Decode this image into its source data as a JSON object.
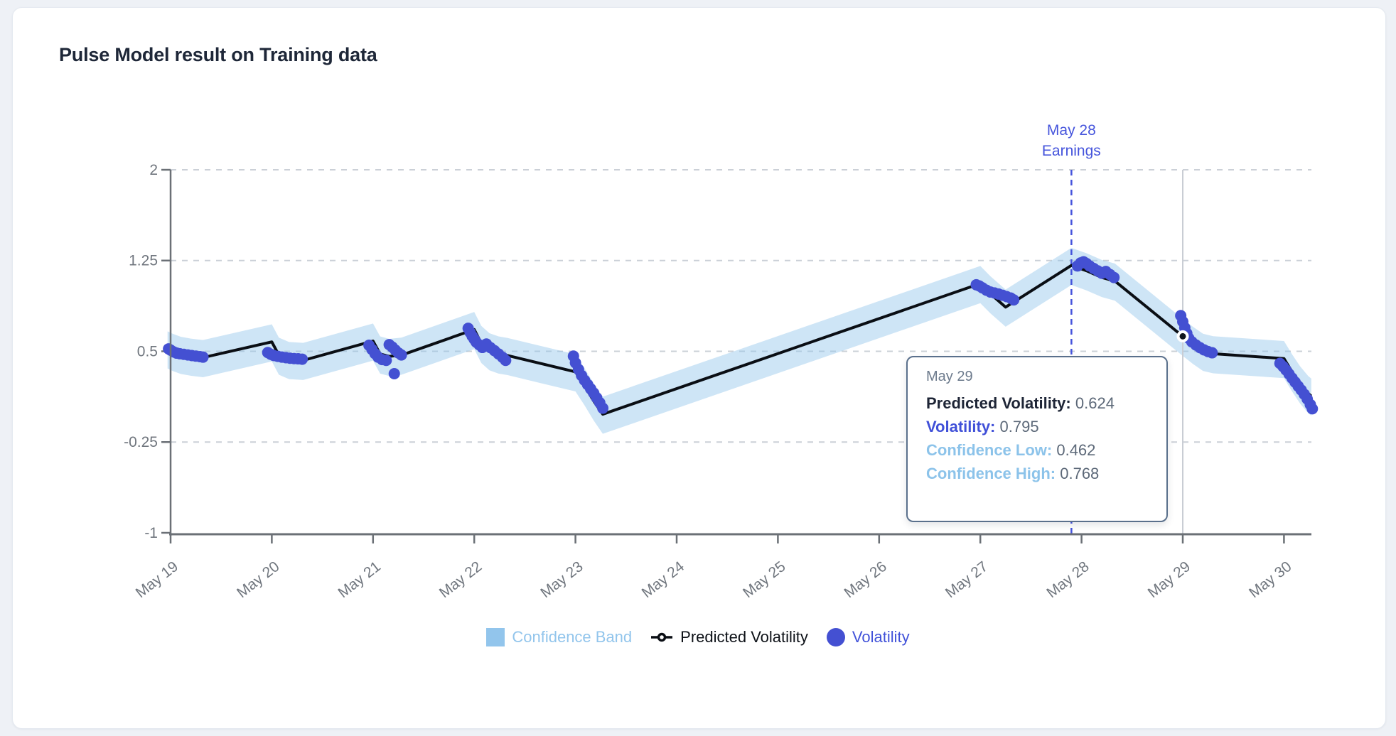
{
  "title": "Pulse Model result on Training data",
  "colors": {
    "page_background": "#eef1f6",
    "card_background": "#ffffff",
    "title_text": "#1e2738",
    "axis_line": "#6b7076",
    "axis_text": "#70767e",
    "gridline": "#cbd0d7",
    "confidence_band": "#92c5ec",
    "predicted_line": "#0a0e14",
    "volatility_dots": "#4450d2",
    "earnings_line": "#4554dc",
    "crosshair": "#c9cdd4",
    "tooltip_border": "#5a708c"
  },
  "chart_data": {
    "type": "line",
    "title": "Pulse Model result on Training data",
    "x_axis": {
      "tick_labels": [
        "May 19",
        "May 20",
        "May 21",
        "May 22",
        "May 23",
        "May 24",
        "May 25",
        "May 26",
        "May 27",
        "May 28",
        "May 29",
        "May 30"
      ],
      "tick_days": [
        19,
        20,
        21,
        22,
        23,
        24,
        25,
        26,
        27,
        28,
        29,
        30
      ]
    },
    "y_axis": {
      "ticks": [
        2,
        1.25,
        0.5,
        -0.25,
        -1
      ],
      "tick_labels": [
        "2",
        "1.25",
        "0.5",
        "-0.25",
        "-1"
      ],
      "range": [
        -1,
        2
      ]
    },
    "grid": "dashed horizontal",
    "legend_position": "bottom center",
    "series": {
      "predicted_volatility": [
        [
          18.97,
          0.52
        ],
        [
          19.02,
          0.5
        ],
        [
          19.1,
          0.475
        ],
        [
          19.2,
          0.46
        ],
        [
          19.32,
          0.448
        ],
        [
          20.0,
          0.578
        ],
        [
          20.07,
          0.468
        ],
        [
          20.17,
          0.432
        ],
        [
          20.31,
          0.425
        ],
        [
          21.0,
          0.585
        ],
        [
          21.07,
          0.478
        ],
        [
          21.16,
          0.458
        ],
        [
          21.28,
          0.468
        ],
        [
          22.0,
          0.68
        ],
        [
          22.07,
          0.565
        ],
        [
          22.15,
          0.505
        ],
        [
          22.24,
          0.478
        ],
        [
          22.33,
          0.465
        ],
        [
          23.0,
          0.33
        ],
        [
          23.09,
          0.215
        ],
        [
          23.18,
          0.09
        ],
        [
          23.27,
          -0.02
        ],
        [
          27.0,
          1.06
        ],
        [
          27.1,
          0.975
        ],
        [
          27.25,
          0.865
        ],
        [
          27.9,
          1.21
        ],
        [
          28.05,
          1.165
        ],
        [
          28.2,
          1.11
        ],
        [
          28.33,
          1.08
        ],
        [
          29.0,
          0.624
        ],
        [
          29.1,
          0.558
        ],
        [
          29.2,
          0.5
        ],
        [
          29.3,
          0.48
        ],
        [
          30.0,
          0.44
        ],
        [
          30.08,
          0.33
        ],
        [
          30.16,
          0.23
        ],
        [
          30.24,
          0.15
        ],
        [
          30.27,
          0.13
        ]
      ],
      "confidence_band": [
        [
          18.97,
          0.358,
          0.665
        ],
        [
          19.02,
          0.338,
          0.645
        ],
        [
          19.1,
          0.313,
          0.62
        ],
        [
          19.2,
          0.298,
          0.605
        ],
        [
          19.32,
          0.286,
          0.593
        ],
        [
          20.0,
          0.416,
          0.723
        ],
        [
          20.07,
          0.306,
          0.613
        ],
        [
          20.17,
          0.27,
          0.577
        ],
        [
          20.31,
          0.263,
          0.57
        ],
        [
          21.0,
          0.423,
          0.73
        ],
        [
          21.07,
          0.316,
          0.623
        ],
        [
          21.16,
          0.296,
          0.603
        ],
        [
          21.28,
          0.306,
          0.613
        ],
        [
          22.0,
          0.518,
          0.825
        ],
        [
          22.07,
          0.403,
          0.71
        ],
        [
          22.15,
          0.343,
          0.65
        ],
        [
          22.24,
          0.316,
          0.623
        ],
        [
          22.33,
          0.303,
          0.61
        ],
        [
          23.0,
          0.168,
          0.475
        ],
        [
          23.09,
          0.053,
          0.36
        ],
        [
          23.18,
          -0.072,
          0.235
        ],
        [
          23.27,
          -0.182,
          0.125
        ],
        [
          27.0,
          0.898,
          1.205
        ],
        [
          27.1,
          0.813,
          1.12
        ],
        [
          27.25,
          0.703,
          1.01
        ],
        [
          27.9,
          1.048,
          1.355
        ],
        [
          28.05,
          1.003,
          1.31
        ],
        [
          28.2,
          0.948,
          1.255
        ],
        [
          28.33,
          0.918,
          1.225
        ],
        [
          29.0,
          0.462,
          0.768
        ],
        [
          29.1,
          0.396,
          0.703
        ],
        [
          29.2,
          0.338,
          0.645
        ],
        [
          29.3,
          0.318,
          0.625
        ],
        [
          30.0,
          0.278,
          0.585
        ],
        [
          30.08,
          0.168,
          0.475
        ],
        [
          30.16,
          0.068,
          0.375
        ],
        [
          30.24,
          -0.012,
          0.295
        ],
        [
          30.27,
          -0.032,
          0.275
        ]
      ],
      "volatility": [
        [
          18.98,
          0.52
        ],
        [
          19.0,
          0.51
        ],
        [
          19.03,
          0.495
        ],
        [
          19.06,
          0.485
        ],
        [
          19.09,
          0.48
        ],
        [
          19.13,
          0.475
        ],
        [
          19.17,
          0.47
        ],
        [
          19.21,
          0.465
        ],
        [
          19.25,
          0.46
        ],
        [
          19.29,
          0.456
        ],
        [
          19.32,
          0.452
        ],
        [
          19.96,
          0.49
        ],
        [
          19.99,
          0.475
        ],
        [
          20.02,
          0.465
        ],
        [
          20.06,
          0.458
        ],
        [
          20.1,
          0.452
        ],
        [
          20.14,
          0.447
        ],
        [
          20.18,
          0.443
        ],
        [
          20.22,
          0.44
        ],
        [
          20.26,
          0.438
        ],
        [
          20.3,
          0.435
        ],
        [
          20.96,
          0.55
        ],
        [
          20.99,
          0.515
        ],
        [
          21.02,
          0.48
        ],
        [
          21.05,
          0.452
        ],
        [
          21.09,
          0.432
        ],
        [
          21.13,
          0.425
        ],
        [
          21.16,
          0.555
        ],
        [
          21.19,
          0.535
        ],
        [
          21.22,
          0.51
        ],
        [
          21.25,
          0.487
        ],
        [
          21.28,
          0.47
        ],
        [
          21.21,
          0.315
        ],
        [
          21.94,
          0.69
        ],
        [
          21.96,
          0.655
        ],
        [
          21.98,
          0.625
        ],
        [
          22.0,
          0.6
        ],
        [
          22.02,
          0.575
        ],
        [
          22.05,
          0.553
        ],
        [
          22.08,
          0.532
        ],
        [
          22.12,
          0.56
        ],
        [
          22.16,
          0.53
        ],
        [
          22.2,
          0.505
        ],
        [
          22.24,
          0.478
        ],
        [
          22.28,
          0.45
        ],
        [
          22.31,
          0.425
        ],
        [
          22.98,
          0.46
        ],
        [
          23.0,
          0.405
        ],
        [
          23.03,
          0.35
        ],
        [
          23.06,
          0.3
        ],
        [
          23.09,
          0.26
        ],
        [
          23.12,
          0.225
        ],
        [
          23.15,
          0.19
        ],
        [
          23.18,
          0.155
        ],
        [
          23.21,
          0.115
        ],
        [
          23.24,
          0.075
        ],
        [
          23.27,
          0.03
        ],
        [
          26.96,
          1.05
        ],
        [
          26.99,
          1.04
        ],
        [
          27.02,
          1.025
        ],
        [
          27.06,
          1.005
        ],
        [
          27.1,
          0.99
        ],
        [
          27.14,
          0.982
        ],
        [
          27.18,
          0.973
        ],
        [
          27.22,
          0.963
        ],
        [
          27.26,
          0.952
        ],
        [
          27.3,
          0.94
        ],
        [
          27.33,
          0.925
        ],
        [
          27.96,
          1.205
        ],
        [
          27.99,
          1.23
        ],
        [
          28.02,
          1.24
        ],
        [
          28.05,
          1.225
        ],
        [
          28.08,
          1.205
        ],
        [
          28.12,
          1.185
        ],
        [
          28.16,
          1.165
        ],
        [
          28.2,
          1.145
        ],
        [
          28.24,
          1.16
        ],
        [
          28.28,
          1.135
        ],
        [
          28.32,
          1.11
        ],
        [
          28.98,
          0.795
        ],
        [
          29.0,
          0.745
        ],
        [
          29.02,
          0.695
        ],
        [
          29.04,
          0.648
        ],
        [
          29.06,
          0.608
        ],
        [
          29.09,
          0.578
        ],
        [
          29.13,
          0.552
        ],
        [
          29.17,
          0.53
        ],
        [
          29.21,
          0.512
        ],
        [
          29.25,
          0.498
        ],
        [
          29.29,
          0.488
        ],
        [
          29.96,
          0.4
        ],
        [
          29.99,
          0.375
        ],
        [
          30.02,
          0.345
        ],
        [
          30.05,
          0.312
        ],
        [
          30.08,
          0.278
        ],
        [
          30.11,
          0.245
        ],
        [
          30.14,
          0.212
        ],
        [
          30.17,
          0.18
        ],
        [
          30.2,
          0.145
        ],
        [
          30.23,
          0.105
        ],
        [
          30.26,
          0.06
        ],
        [
          30.28,
          0.025
        ]
      ]
    },
    "annotations": {
      "earnings_vline": {
        "day": 27.9,
        "label_line1": "May 28",
        "label_line2": "Earnings"
      },
      "crosshair_day": 29.0,
      "active_point": {
        "day": 29.0,
        "value": 0.624
      }
    }
  },
  "tooltip": {
    "date": "May 29",
    "rows": [
      {
        "label": "Predicted Volatility:",
        "value": "0.624"
      },
      {
        "label": "Volatility:",
        "value": "0.795"
      },
      {
        "label": "Confidence Low:",
        "value": "0.462"
      },
      {
        "label": "Confidence High:",
        "value": "0.768"
      }
    ]
  },
  "legend": {
    "items": [
      {
        "label": "Confidence Band"
      },
      {
        "label": "Predicted Volatility"
      },
      {
        "label": "Volatility"
      }
    ]
  }
}
